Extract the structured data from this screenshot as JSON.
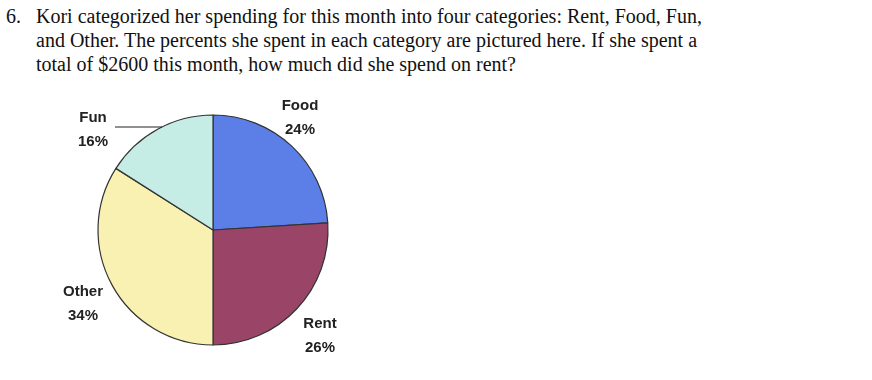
{
  "question": {
    "number": "6.",
    "lines": [
      "Kori categorized her spending for this month into four categories: Rent, Food, Fun,",
      "and Other. The percents she spent in each category are pictured here.  If she spent a",
      "total of $2600 this month, how much did she spend on rent?"
    ]
  },
  "chart_data": {
    "type": "pie",
    "categories": [
      "Food",
      "Rent",
      "Other",
      "Fun"
    ],
    "values": [
      24,
      26,
      34,
      16
    ],
    "value_labels": [
      "24%",
      "26%",
      "34%",
      "16%"
    ],
    "colors": [
      "#5b7fe6",
      "#9a4568",
      "#f8f1b2",
      "#c6ece6"
    ]
  }
}
